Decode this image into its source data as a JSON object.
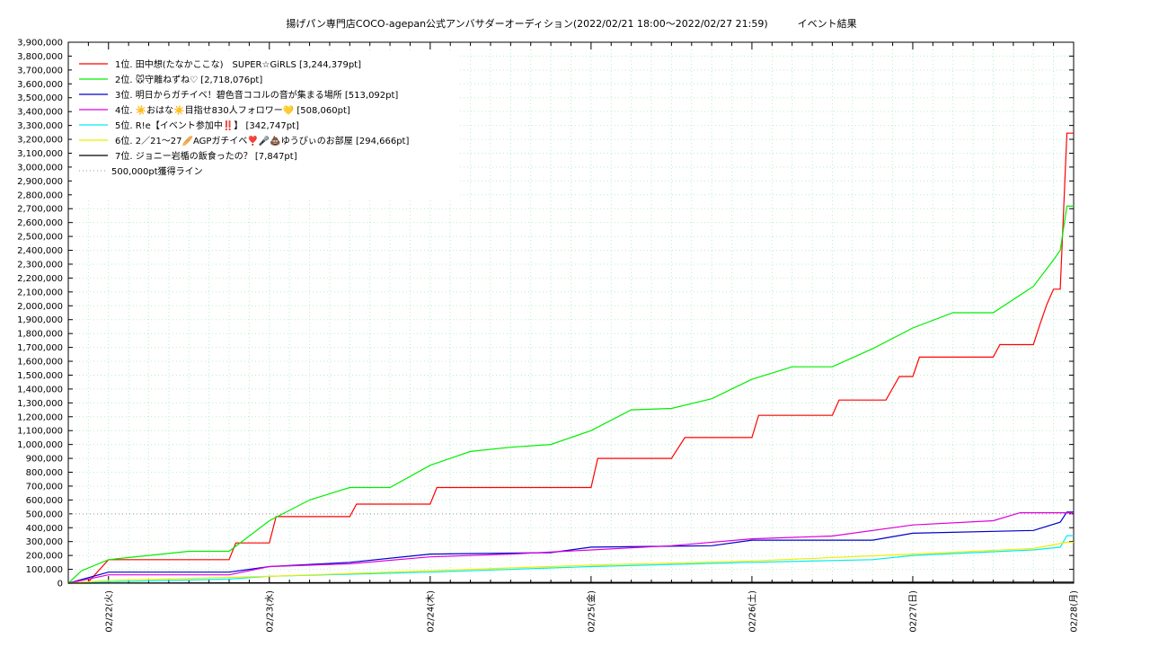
{
  "chart_data": {
    "type": "line",
    "title": "揚げパン専門店COCO-agepan公式アンバサダーオーディション(2022/02/21 18:00〜2022/02/27 21:59)　　　イベント結果",
    "xlabel": "",
    "ylabel": "",
    "x_start": "2022-02-21 18:00",
    "x_end": "2022-02-28 00:00",
    "x_tick_labels": [
      "02/22(火)",
      "02/23(水)",
      "02/24(木)",
      "02/25(金)",
      "02/26(土)",
      "02/27(日)",
      "02/28(月)"
    ],
    "ylim": [
      0,
      3900000
    ],
    "y_step": 100000,
    "grid": true,
    "legend_position": "top-left",
    "reference_line": {
      "label": "500,000pt獲得ライン",
      "value": 500000,
      "color": "#999999"
    },
    "series": [
      {
        "name": "1位. 田中想(たなかここな)　SUPER☆GiRLS [3,244,379pt]",
        "color": "#ff0000",
        "points": [
          [
            "2022-02-21 18:00",
            0
          ],
          [
            "2022-02-21 21:00",
            10000
          ],
          [
            "2022-02-22 00:00",
            170000
          ],
          [
            "2022-02-22 12:00",
            170000
          ],
          [
            "2022-02-22 18:00",
            170000
          ],
          [
            "2022-02-22 19:00",
            290000
          ],
          [
            "2022-02-23 00:00",
            290000
          ],
          [
            "2022-02-23 01:00",
            480000
          ],
          [
            "2022-02-23 12:00",
            480000
          ],
          [
            "2022-02-23 13:00",
            570000
          ],
          [
            "2022-02-24 00:00",
            570000
          ],
          [
            "2022-02-24 01:00",
            690000
          ],
          [
            "2022-02-24 12:00",
            690000
          ],
          [
            "2022-02-25 00:00",
            690000
          ],
          [
            "2022-02-25 01:00",
            900000
          ],
          [
            "2022-02-25 12:00",
            900000
          ],
          [
            "2022-02-25 14:00",
            1050000
          ],
          [
            "2022-02-26 00:00",
            1050000
          ],
          [
            "2022-02-26 01:00",
            1210000
          ],
          [
            "2022-02-26 12:00",
            1210000
          ],
          [
            "2022-02-26 13:00",
            1320000
          ],
          [
            "2022-02-26 20:00",
            1320000
          ],
          [
            "2022-02-26 22:00",
            1490000
          ],
          [
            "2022-02-27 00:00",
            1490000
          ],
          [
            "2022-02-27 01:00",
            1630000
          ],
          [
            "2022-02-27 12:00",
            1630000
          ],
          [
            "2022-02-27 13:00",
            1720000
          ],
          [
            "2022-02-27 18:00",
            1720000
          ],
          [
            "2022-02-27 19:00",
            1870000
          ],
          [
            "2022-02-27 20:00",
            2010000
          ],
          [
            "2022-02-27 21:00",
            2120000
          ],
          [
            "2022-02-27 22:00",
            2120000
          ],
          [
            "2022-02-27 23:00",
            3244379
          ],
          [
            "2022-02-28 00:00",
            3244379
          ]
        ]
      },
      {
        "name": "2位. 🐭守離ねずね♡ [2,718,076pt]",
        "color": "#00ee00",
        "points": [
          [
            "2022-02-21 18:00",
            0
          ],
          [
            "2022-02-21 20:00",
            90000
          ],
          [
            "2022-02-22 00:00",
            170000
          ],
          [
            "2022-02-22 12:00",
            230000
          ],
          [
            "2022-02-22 18:00",
            230000
          ],
          [
            "2022-02-23 00:00",
            450000
          ],
          [
            "2022-02-23 06:00",
            600000
          ],
          [
            "2022-02-23 12:00",
            690000
          ],
          [
            "2022-02-23 18:00",
            690000
          ],
          [
            "2022-02-24 00:00",
            850000
          ],
          [
            "2022-02-24 06:00",
            950000
          ],
          [
            "2022-02-24 12:00",
            980000
          ],
          [
            "2022-02-24 18:00",
            1000000
          ],
          [
            "2022-02-25 00:00",
            1100000
          ],
          [
            "2022-02-25 06:00",
            1250000
          ],
          [
            "2022-02-25 12:00",
            1260000
          ],
          [
            "2022-02-25 18:00",
            1330000
          ],
          [
            "2022-02-26 00:00",
            1470000
          ],
          [
            "2022-02-26 06:00",
            1560000
          ],
          [
            "2022-02-26 12:00",
            1560000
          ],
          [
            "2022-02-26 18:00",
            1690000
          ],
          [
            "2022-02-27 00:00",
            1840000
          ],
          [
            "2022-02-27 06:00",
            1950000
          ],
          [
            "2022-02-27 12:00",
            1950000
          ],
          [
            "2022-02-27 18:00",
            2140000
          ],
          [
            "2022-02-27 21:00",
            2330000
          ],
          [
            "2022-02-27 22:00",
            2400000
          ],
          [
            "2022-02-27 23:00",
            2718076
          ],
          [
            "2022-02-28 00:00",
            2718076
          ]
        ]
      },
      {
        "name": "3位. 明日からガチイベ！碧色音ココルの音が集まる場所 [513,092pt]",
        "color": "#0000cc",
        "points": [
          [
            "2022-02-21 18:00",
            0
          ],
          [
            "2022-02-22 00:00",
            80000
          ],
          [
            "2022-02-22 18:00",
            80000
          ],
          [
            "2022-02-23 00:00",
            120000
          ],
          [
            "2022-02-23 12:00",
            150000
          ],
          [
            "2022-02-24 00:00",
            210000
          ],
          [
            "2022-02-24 18:00",
            220000
          ],
          [
            "2022-02-25 00:00",
            260000
          ],
          [
            "2022-02-25 18:00",
            270000
          ],
          [
            "2022-02-26 00:00",
            310000
          ],
          [
            "2022-02-26 18:00",
            310000
          ],
          [
            "2022-02-27 00:00",
            360000
          ],
          [
            "2022-02-27 18:00",
            380000
          ],
          [
            "2022-02-27 22:00",
            440000
          ],
          [
            "2022-02-27 23:00",
            513092
          ],
          [
            "2022-02-28 00:00",
            513092
          ]
        ]
      },
      {
        "name": "4位. ☀️おはな☀️目指せ830人フォロワー💛 [508,060pt]",
        "color": "#dd00dd",
        "points": [
          [
            "2022-02-21 18:00",
            0
          ],
          [
            "2022-02-22 00:00",
            60000
          ],
          [
            "2022-02-22 18:00",
            60000
          ],
          [
            "2022-02-23 00:00",
            120000
          ],
          [
            "2022-02-23 12:00",
            140000
          ],
          [
            "2022-02-24 00:00",
            190000
          ],
          [
            "2022-02-24 12:00",
            210000
          ],
          [
            "2022-02-25 00:00",
            240000
          ],
          [
            "2022-02-25 12:00",
            270000
          ],
          [
            "2022-02-26 00:00",
            320000
          ],
          [
            "2022-02-26 12:00",
            340000
          ],
          [
            "2022-02-27 00:00",
            420000
          ],
          [
            "2022-02-27 12:00",
            450000
          ],
          [
            "2022-02-27 16:00",
            508060
          ],
          [
            "2022-02-28 00:00",
            508060
          ]
        ]
      },
      {
        "name": "5位. R!e【イベント参加中‼️】 [342,747pt]",
        "color": "#00eeee",
        "points": [
          [
            "2022-02-21 18:00",
            0
          ],
          [
            "2022-02-22 00:00",
            10000
          ],
          [
            "2022-02-22 18:00",
            30000
          ],
          [
            "2022-02-23 00:00",
            50000
          ],
          [
            "2022-02-24 00:00",
            80000
          ],
          [
            "2022-02-25 00:00",
            120000
          ],
          [
            "2022-02-26 00:00",
            150000
          ],
          [
            "2022-02-26 18:00",
            170000
          ],
          [
            "2022-02-27 00:00",
            200000
          ],
          [
            "2022-02-27 18:00",
            240000
          ],
          [
            "2022-02-27 22:00",
            260000
          ],
          [
            "2022-02-27 23:00",
            342747
          ],
          [
            "2022-02-28 00:00",
            342747
          ]
        ]
      },
      {
        "name": "6位. 2／21〜27🥖AGPガチイベ❣️🎤💩ゆうぴぃのお部屋 [294,666pt]",
        "color": "#eeee00",
        "points": [
          [
            "2022-02-21 18:00",
            0
          ],
          [
            "2022-02-22 00:00",
            20000
          ],
          [
            "2022-02-23 00:00",
            50000
          ],
          [
            "2022-02-24 00:00",
            90000
          ],
          [
            "2022-02-25 00:00",
            130000
          ],
          [
            "2022-02-26 00:00",
            160000
          ],
          [
            "2022-02-27 00:00",
            210000
          ],
          [
            "2022-02-27 18:00",
            250000
          ],
          [
            "2022-02-27 23:00",
            294666
          ],
          [
            "2022-02-28 00:00",
            294666
          ]
        ]
      },
      {
        "name": "7位. ジョニー岩楯の飯食ったの？ [7,847pt]",
        "color": "#000000",
        "points": [
          [
            "2022-02-21 18:00",
            0
          ],
          [
            "2022-02-24 00:00",
            5000
          ],
          [
            "2022-02-28 00:00",
            7847
          ]
        ]
      }
    ]
  }
}
